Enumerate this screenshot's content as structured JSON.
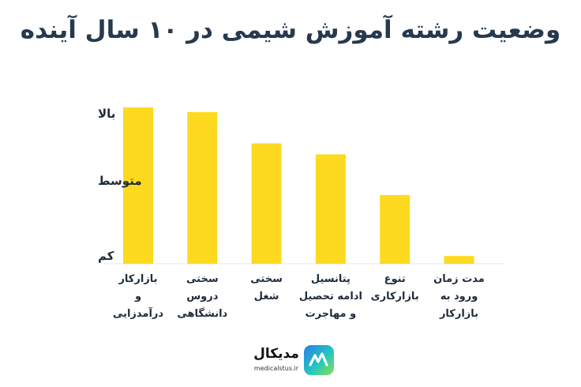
{
  "page": {
    "title": "وضعیت رشته آموزش شیمی در ۱۰ سال آینده"
  },
  "colors": {
    "bar": "#FDDA1F",
    "axis": "#E3E3E3",
    "title": "#26394F",
    "text": "#1F2B3B"
  },
  "chart_data": {
    "type": "bar",
    "title": "وضعیت رشته آموزش شیمی در ۱۰ سال آینده",
    "xlabel": "",
    "ylabel": "",
    "ylim": [
      0,
      100
    ],
    "grid": false,
    "legend": "none",
    "y_ticks": [
      {
        "label": "کم",
        "value": 5
      },
      {
        "label": "متوسط",
        "value": 53
      },
      {
        "label": "بالا",
        "value": 96
      }
    ],
    "categories": [
      [
        "بازارکار",
        "و",
        "درآمدزایی"
      ],
      [
        "سختی",
        "دروس",
        "دانشگاهی"
      ],
      [
        "سختی",
        "شغل"
      ],
      [
        "پتانسیل",
        "ادامه تحصیل",
        "و مهاجرت"
      ],
      [
        "تنوع",
        "بازارکاری"
      ],
      [
        "مدت زمان",
        "ورود به",
        "بازارکار"
      ]
    ],
    "values": [
      100,
      97,
      77,
      70,
      44,
      5
    ]
  },
  "logo": {
    "name": "مدیکال",
    "site": "medicalstus.ir",
    "icon": "medical-logo-icon"
  }
}
